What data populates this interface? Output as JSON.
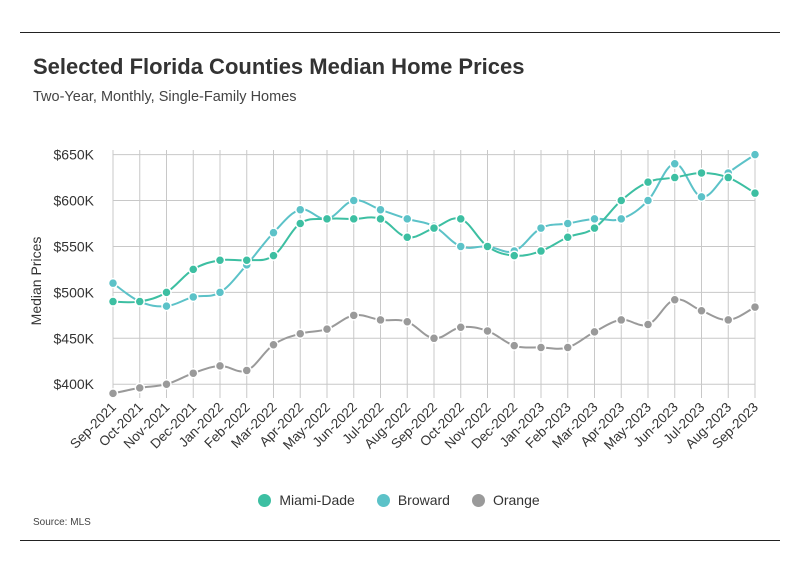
{
  "title": "Selected Florida Counties Median Home Prices",
  "subtitle": "Two-Year, Monthly, Single-Family Homes",
  "source": "Source: MLS",
  "chart_data": {
    "type": "line",
    "ylabel": "Median Prices",
    "xlabel": "",
    "ylim": [
      385000,
      655000
    ],
    "yticks": [
      400000,
      450000,
      500000,
      550000,
      600000,
      650000
    ],
    "ytick_labels": [
      "$400K",
      "$450K",
      "$500K",
      "$550K",
      "$600K",
      "$650K"
    ],
    "grid": true,
    "legend_position": "bottom",
    "categories": [
      "Sep-2021",
      "Oct-2021",
      "Nov-2021",
      "Dec-2021",
      "Jan-2022",
      "Feb-2022",
      "Mar-2022",
      "Apr-2022",
      "May-2022",
      "Jun-2022",
      "Jul-2022",
      "Aug-2022",
      "Sep-2022",
      "Oct-2022",
      "Nov-2022",
      "Dec-2022",
      "Jan-2023",
      "Feb-2023",
      "Mar-2023",
      "Apr-2023",
      "May-2023",
      "Jun-2023",
      "Jul-2023",
      "Aug-2023",
      "Sep-2023"
    ],
    "series": [
      {
        "name": "Miami-Dade",
        "color": "#3dbfa2",
        "values": [
          490000,
          490000,
          500000,
          525000,
          535000,
          535000,
          540000,
          575000,
          580000,
          580000,
          580000,
          560000,
          570000,
          580000,
          550000,
          540000,
          545000,
          560000,
          570000,
          600000,
          620000,
          625000,
          630000,
          625000,
          608000
        ]
      },
      {
        "name": "Broward",
        "color": "#5cc2c8",
        "values": [
          510000,
          490000,
          485000,
          495000,
          500000,
          530000,
          565000,
          590000,
          580000,
          600000,
          590000,
          580000,
          572000,
          550000,
          550000,
          545000,
          570000,
          575000,
          580000,
          580000,
          600000,
          640000,
          604000,
          630000,
          650000
        ]
      },
      {
        "name": "Orange",
        "color": "#9a9a9a",
        "values": [
          390000,
          396000,
          400000,
          412000,
          420000,
          415000,
          443000,
          455000,
          460000,
          475000,
          470000,
          468000,
          450000,
          462000,
          458000,
          442000,
          440000,
          440000,
          457000,
          470000,
          465000,
          492000,
          480000,
          470000,
          484000
        ]
      }
    ]
  }
}
